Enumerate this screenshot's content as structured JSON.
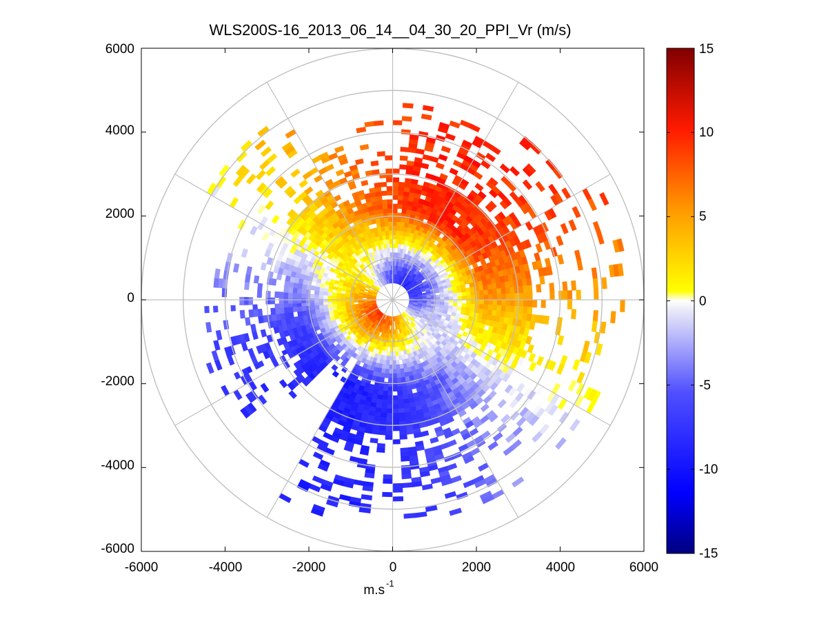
{
  "chart_data": {
    "type": "heatmap",
    "subtype": "polar-ppi-scan",
    "title": "WLS200S-16_2013_06_14__04_30_20_PPI_Vr (m/s)",
    "xlabel": "m.s",
    "xlabel_superscript": "-1",
    "ylabel": "",
    "xlim": [
      -6000,
      6000
    ],
    "ylim": [
      -6000,
      6000
    ],
    "xticks": [
      -6000,
      -4000,
      -2000,
      0,
      2000,
      4000,
      6000
    ],
    "yticks": [
      -6000,
      -4000,
      -2000,
      0,
      2000,
      4000,
      6000
    ],
    "xtick_labels": [
      "-6000",
      "-4000",
      "-2000",
      "0",
      "2000",
      "4000",
      "6000"
    ],
    "ytick_labels": [
      "-6000",
      "-4000",
      "-2000",
      "0",
      "2000",
      "4000",
      "6000"
    ],
    "range_rings": [
      1000,
      2000,
      3000,
      4000,
      5000,
      6000
    ],
    "spoke_angles_deg": [
      0,
      30,
      60,
      90,
      120,
      150,
      180,
      210,
      240,
      270,
      300,
      330
    ],
    "grid": true,
    "colorbar": {
      "label_unit": "m/s",
      "lim": [
        -15,
        15
      ],
      "ticks": [
        -15,
        -10,
        -5,
        0,
        5,
        10,
        15
      ],
      "tick_labels": [
        "-15",
        "-10",
        "-5",
        "0",
        "5",
        "10",
        "15"
      ],
      "placement": "right",
      "colors": {
        "neg_extreme": "#000080",
        "neg_strong": "#0000ff",
        "neg_weak": "#e8e8f8",
        "zero": "#ffffff",
        "pos_weak": "#ffff00",
        "pos_mid": "#ff8c00",
        "pos_strong": "#ff0000",
        "pos_extreme": "#800000"
      }
    },
    "max_range_m": 6000,
    "data_sectors": [
      {
        "az_start": 0,
        "az_end": 30,
        "r_min": 400,
        "r_max": 4900,
        "fill": 0.72
      },
      {
        "az_start": 30,
        "az_end": 60,
        "r_min": 400,
        "r_max": 5100,
        "fill": 0.7
      },
      {
        "az_start": 60,
        "az_end": 90,
        "r_min": 400,
        "r_max": 5700,
        "fill": 0.48
      },
      {
        "az_start": 90,
        "az_end": 120,
        "r_min": 400,
        "r_max": 5600,
        "fill": 0.45
      },
      {
        "az_start": 120,
        "az_end": 150,
        "r_min": 400,
        "r_max": 5300,
        "fill": 0.6
      },
      {
        "az_start": 150,
        "az_end": 180,
        "r_min": 400,
        "r_max": 5300,
        "fill": 0.74
      },
      {
        "az_start": 180,
        "az_end": 210,
        "r_min": 400,
        "r_max": 5400,
        "fill": 0.75
      },
      {
        "az_start": 210,
        "az_end": 225,
        "r_min": 400,
        "r_max": 2300,
        "fill": 0.8
      },
      {
        "az_start": 225,
        "az_end": 245,
        "r_min": 400,
        "r_max": 4600,
        "fill": 0.62
      },
      {
        "az_start": 245,
        "az_end": 268,
        "r_min": 400,
        "r_max": 4700,
        "fill": 0.58
      },
      {
        "az_start": 268,
        "az_end": 300,
        "r_min": 400,
        "r_max": 4300,
        "fill": 0.68
      },
      {
        "az_start": 300,
        "az_end": 330,
        "r_min": 400,
        "r_max": 5100,
        "fill": 0.5
      },
      {
        "az_start": 330,
        "az_end": 345,
        "r_min": 400,
        "r_max": 3800,
        "fill": 0.72
      },
      {
        "az_start": 345,
        "az_end": 360,
        "r_min": 400,
        "r_max": 4300,
        "fill": 0.6
      }
    ],
    "velocity_model": {
      "far_field_amplitude": 9,
      "far_field_max_azimuth_deg": 30,
      "near_field_amplitude": 8,
      "near_field_max_azimuth_deg": 225,
      "transition_range_m": 1600
    }
  }
}
